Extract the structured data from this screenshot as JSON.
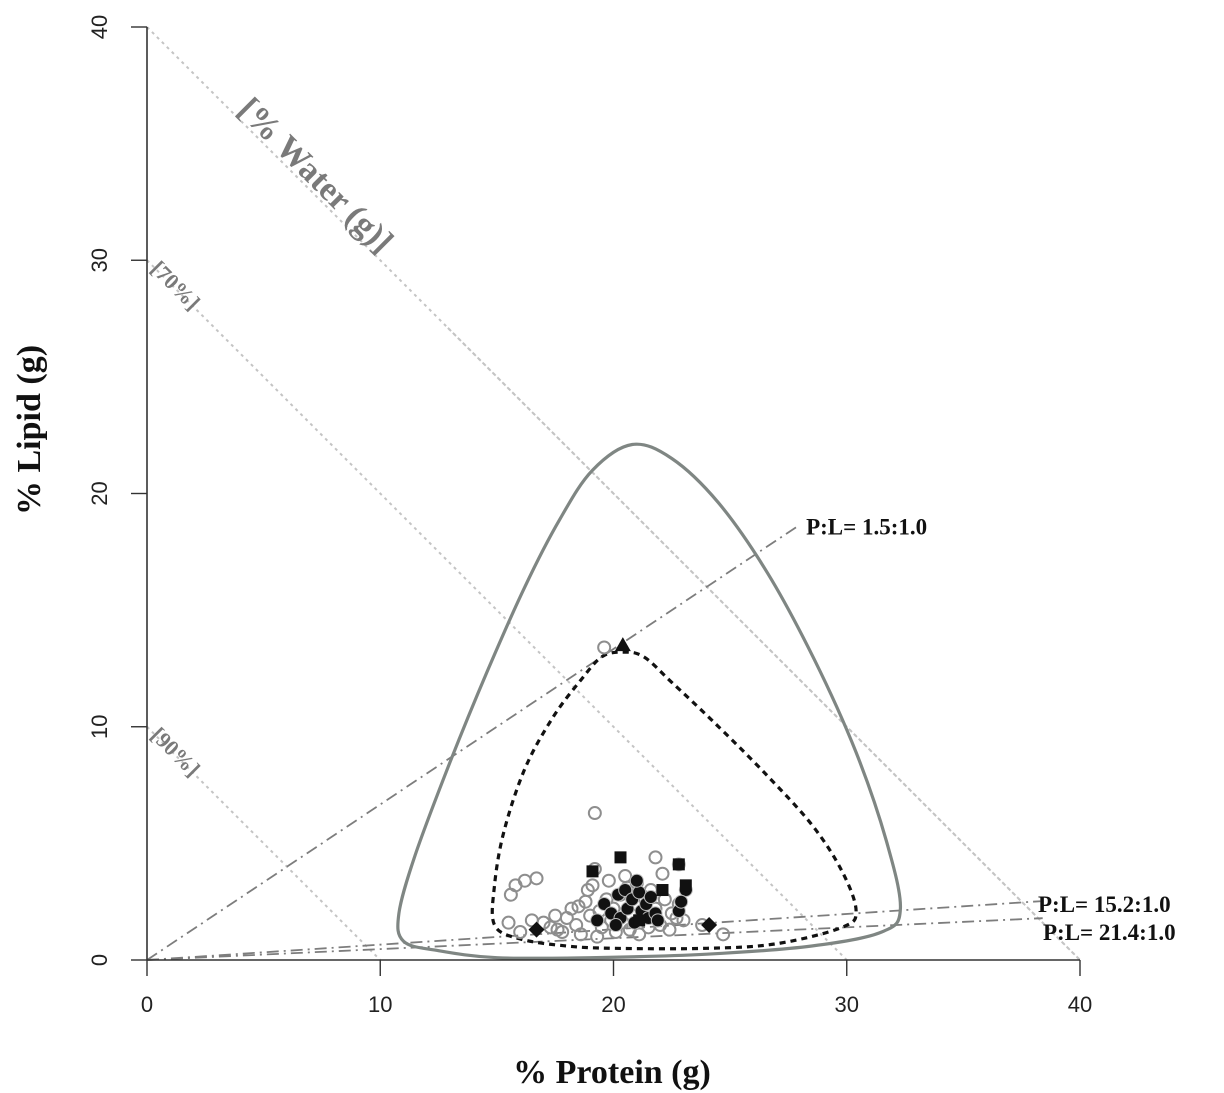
{
  "chart_data": {
    "type": "scatter",
    "title": "",
    "xlabel": "% Protein (g)",
    "ylabel": "% Lipid (g)",
    "xlim": [
      0,
      40
    ],
    "ylim": [
      0,
      40
    ],
    "xticks": [
      "0",
      "10",
      "20",
      "30",
      "40"
    ],
    "yticks": [
      "0",
      "10",
      "20",
      "30",
      "40"
    ],
    "grid": false,
    "water_axis_label": "[% Water (g)]",
    "water_lines": [
      {
        "label": "[70%]",
        "intercept": 30
      },
      {
        "label": "[90%]",
        "intercept": 10
      },
      {
        "label": "",
        "intercept": 40
      },
      {
        "label": "",
        "intercept": 20
      }
    ],
    "ratio_lines": [
      {
        "label": "P:L= 1.5:1.0",
        "slope": 0.6667,
        "x_end": 28.0
      },
      {
        "label": "P:L= 15.2:1.0",
        "slope": 0.0658,
        "x_end": 38.3
      },
      {
        "label": "P:L= 21.4:1.0",
        "slope": 0.0467,
        "x_end": 38.4
      }
    ],
    "contours": [
      {
        "style": "solid-grey",
        "points": [
          [
            20.8,
            22.1
          ],
          [
            22.5,
            21.5
          ],
          [
            24.5,
            19.6
          ],
          [
            26.6,
            16.6
          ],
          [
            28.6,
            12.9
          ],
          [
            30.4,
            8.9
          ],
          [
            31.7,
            5.1
          ],
          [
            32.3,
            2.2
          ],
          [
            31.5,
            1.2
          ],
          [
            28.5,
            0.6
          ],
          [
            24.0,
            0.25
          ],
          [
            19.0,
            0.1
          ],
          [
            15.0,
            0.1
          ],
          [
            12.5,
            0.4
          ],
          [
            11.0,
            0.8
          ],
          [
            10.8,
            2.0
          ],
          [
            11.5,
            4.5
          ],
          [
            13.0,
            8.5
          ],
          [
            14.6,
            12.4
          ],
          [
            16.2,
            16.0
          ],
          [
            17.7,
            18.9
          ],
          [
            19.1,
            21.0
          ]
        ]
      },
      {
        "style": "dotted-black",
        "points": [
          [
            20.4,
            13.2
          ],
          [
            21.3,
            13.0
          ],
          [
            22.5,
            11.9
          ],
          [
            24.3,
            10.2
          ],
          [
            26.5,
            8.0
          ],
          [
            28.5,
            5.8
          ],
          [
            29.8,
            3.8
          ],
          [
            30.4,
            2.1
          ],
          [
            29.8,
            1.4
          ],
          [
            27.0,
            0.7
          ],
          [
            24.0,
            0.5
          ],
          [
            20.0,
            0.5
          ],
          [
            18.0,
            0.6
          ],
          [
            16.0,
            0.9
          ],
          [
            14.9,
            1.5
          ],
          [
            14.9,
            3.2
          ],
          [
            15.3,
            5.5
          ],
          [
            16.2,
            8.2
          ],
          [
            17.4,
            10.4
          ],
          [
            18.6,
            12.0
          ],
          [
            19.5,
            13.0
          ]
        ]
      }
    ],
    "series": [
      {
        "marker": "open-circle",
        "points": [
          [
            19.2,
            6.3
          ],
          [
            19.6,
            13.4
          ],
          [
            16.2,
            3.4
          ],
          [
            16.7,
            3.5
          ],
          [
            15.8,
            3.2
          ],
          [
            15.6,
            2.8
          ],
          [
            17.0,
            1.6
          ],
          [
            17.3,
            1.4
          ],
          [
            17.5,
            1.9
          ],
          [
            17.8,
            1.2
          ],
          [
            18.0,
            1.8
          ],
          [
            18.2,
            2.2
          ],
          [
            18.4,
            1.5
          ],
          [
            18.5,
            2.3
          ],
          [
            18.6,
            1.1
          ],
          [
            18.8,
            2.5
          ],
          [
            19.0,
            1.9
          ],
          [
            19.1,
            3.2
          ],
          [
            19.2,
            3.9
          ],
          [
            19.4,
            2.1
          ],
          [
            19.5,
            1.4
          ],
          [
            19.7,
            2.6
          ],
          [
            19.8,
            3.4
          ],
          [
            19.9,
            1.7
          ],
          [
            20.0,
            2.2
          ],
          [
            20.1,
            1.2
          ],
          [
            20.3,
            2.8
          ],
          [
            20.4,
            1.6
          ],
          [
            20.6,
            3.1
          ],
          [
            20.7,
            1.3
          ],
          [
            20.9,
            2.4
          ],
          [
            21.0,
            3.3
          ],
          [
            21.2,
            1.9
          ],
          [
            21.3,
            2.7
          ],
          [
            21.5,
            1.4
          ],
          [
            21.6,
            3.0
          ],
          [
            21.8,
            2.2
          ],
          [
            22.0,
            1.5
          ],
          [
            22.1,
            3.7
          ],
          [
            22.2,
            2.6
          ],
          [
            22.4,
            1.3
          ],
          [
            22.5,
            2.0
          ],
          [
            21.8,
            4.4
          ],
          [
            22.8,
            2.4
          ],
          [
            23.0,
            1.7
          ],
          [
            24.7,
            1.1
          ],
          [
            23.8,
            1.5
          ],
          [
            16.0,
            1.2
          ],
          [
            16.5,
            1.7
          ],
          [
            17.6,
            1.3
          ],
          [
            15.5,
            1.6
          ],
          [
            18.9,
            3.0
          ],
          [
            20.5,
            3.6
          ],
          [
            21.1,
            1.1
          ],
          [
            19.3,
            1.0
          ],
          [
            22.7,
            1.8
          ]
        ]
      },
      {
        "marker": "filled-circle",
        "points": [
          [
            19.6,
            2.4
          ],
          [
            19.9,
            2.0
          ],
          [
            20.2,
            2.8
          ],
          [
            20.3,
            1.8
          ],
          [
            20.5,
            3.0
          ],
          [
            20.6,
            2.2
          ],
          [
            20.8,
            2.6
          ],
          [
            20.9,
            1.6
          ],
          [
            21.1,
            2.9
          ],
          [
            21.2,
            2.1
          ],
          [
            21.4,
            2.4
          ],
          [
            21.5,
            1.8
          ],
          [
            21.6,
            2.7
          ],
          [
            21.8,
            2.0
          ],
          [
            21.9,
            1.7
          ],
          [
            20.1,
            1.5
          ],
          [
            21.0,
            3.4
          ],
          [
            19.3,
            1.7
          ],
          [
            22.8,
            2.1
          ],
          [
            22.8,
            4.1
          ],
          [
            23.1,
            3.0
          ],
          [
            22.9,
            2.5
          ]
        ]
      },
      {
        "marker": "filled-square",
        "points": [
          [
            20.3,
            4.4
          ],
          [
            19.1,
            3.8
          ],
          [
            22.1,
            3.0
          ],
          [
            22.8,
            4.1
          ],
          [
            23.1,
            3.2
          ],
          [
            21.1,
            1.7
          ]
        ]
      },
      {
        "marker": "filled-triangle",
        "points": [
          [
            20.4,
            13.5
          ]
        ]
      },
      {
        "marker": "filled-diamond",
        "points": [
          [
            16.7,
            1.3
          ],
          [
            24.1,
            1.5
          ]
        ]
      }
    ]
  }
}
